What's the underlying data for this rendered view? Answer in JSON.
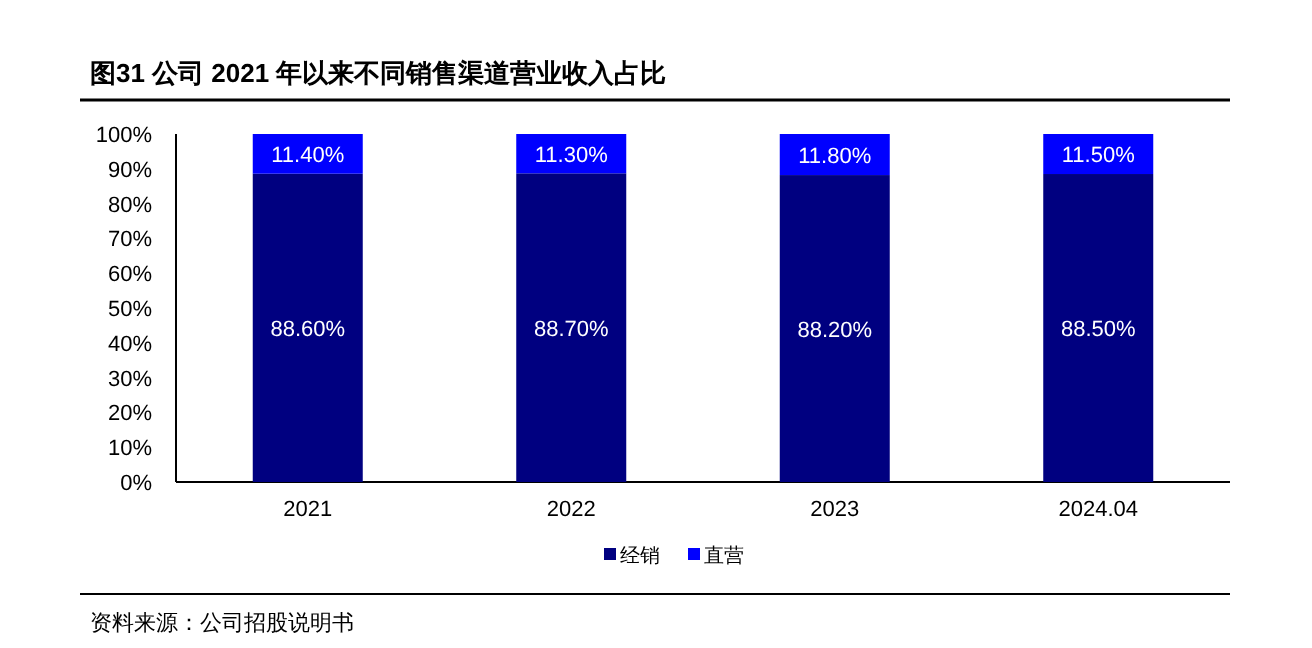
{
  "chart_data": {
    "type": "bar",
    "title": "图31 公司 2021 年以来不同销售渠道营业收入占比",
    "stacked": true,
    "categories": [
      "2021",
      "2022",
      "2023",
      "2024.04"
    ],
    "series": [
      {
        "name": "经销",
        "color": "#000080",
        "values": [
          88.6,
          88.7,
          88.2,
          88.5
        ],
        "value_labels": [
          "88.60%",
          "88.70%",
          "88.20%",
          "88.50%"
        ]
      },
      {
        "name": "直营",
        "color": "#0000ff",
        "values": [
          11.4,
          11.3,
          11.8,
          11.5
        ],
        "value_labels": [
          "11.40%",
          "11.30%",
          "11.80%",
          "11.50%"
        ]
      }
    ],
    "ylim": [
      0,
      100
    ],
    "yticks": [
      {
        "value": 0,
        "label": "0%"
      },
      {
        "value": 10,
        "label": "10%"
      },
      {
        "value": 20,
        "label": "20%"
      },
      {
        "value": 30,
        "label": "30%"
      },
      {
        "value": 40,
        "label": "40%"
      },
      {
        "value": 50,
        "label": "50%"
      },
      {
        "value": 60,
        "label": "60%"
      },
      {
        "value": 70,
        "label": "70%"
      },
      {
        "value": 80,
        "label": "80%"
      },
      {
        "value": 90,
        "label": "90%"
      },
      {
        "value": 100,
        "label": "100%"
      }
    ],
    "grid": false,
    "legend": "bottom",
    "annotations": [
      "资料来源：公司招股说明书"
    ]
  }
}
